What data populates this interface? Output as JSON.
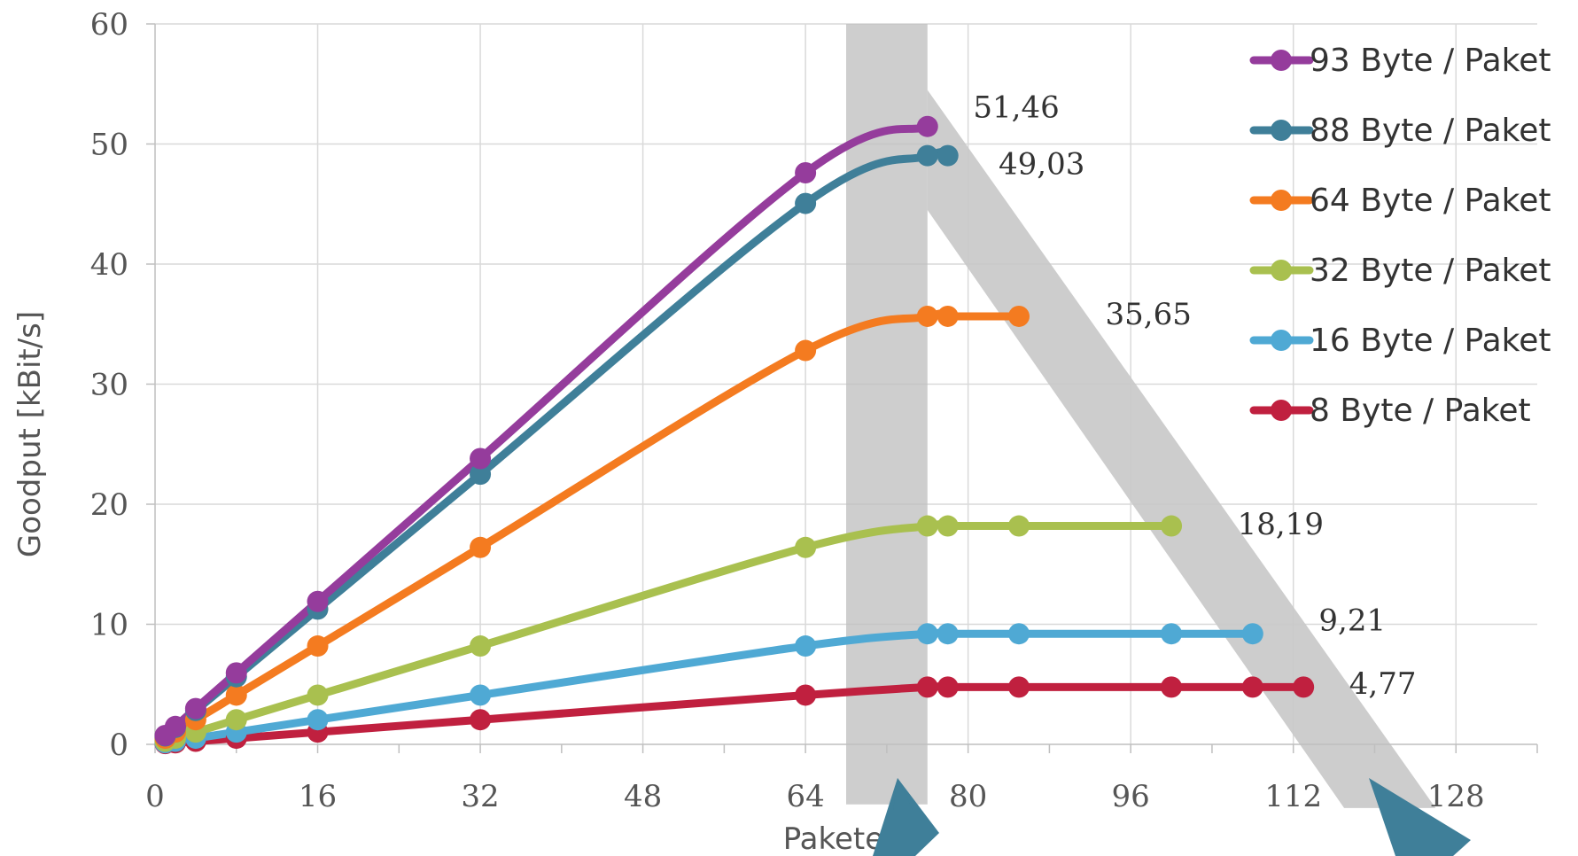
{
  "chart_data": {
    "type": "line",
    "title": "",
    "xlabel": "Pakete/s",
    "ylabel": "Goodput [kBit/s]",
    "xlim": [
      0,
      136
    ],
    "ylim": [
      0,
      60
    ],
    "x_ticks": [
      0,
      16,
      32,
      48,
      64,
      80,
      96,
      112,
      128
    ],
    "y_ticks": [
      0,
      10,
      20,
      30,
      40,
      50,
      60
    ],
    "x_tick_labels": [
      "0",
      "16",
      "32",
      "48",
      "64",
      "80",
      "96",
      "112",
      "128"
    ],
    "y_tick_labels": [
      "0",
      "10",
      "20",
      "30",
      "40",
      "50",
      "60"
    ],
    "grid": true,
    "legend_position": "top-right",
    "series": [
      {
        "name": "93 Byte / Paket",
        "color": "#953C9C",
        "x": [
          1,
          2,
          4,
          8,
          16,
          32,
          64,
          76
        ],
        "y": [
          0.74,
          1.49,
          2.98,
          5.95,
          11.9,
          23.8,
          47.6,
          51.46
        ]
      },
      {
        "name": "88 Byte / Paket",
        "color": "#3F7F99",
        "x": [
          1,
          2,
          4,
          8,
          16,
          32,
          64,
          76,
          78
        ],
        "y": [
          0.7,
          1.41,
          2.82,
          5.63,
          11.26,
          22.5,
          45.05,
          49.03,
          49.03
        ]
      },
      {
        "name": "64 Byte / Paket",
        "color": "#F47B20",
        "x": [
          1,
          2,
          4,
          8,
          16,
          32,
          64,
          76,
          78,
          85
        ],
        "y": [
          0.51,
          1.02,
          2.05,
          4.1,
          8.19,
          16.4,
          32.8,
          35.65,
          35.65,
          35.65
        ]
      },
      {
        "name": "32 Byte / Paket",
        "color": "#A9C04F",
        "x": [
          1,
          2,
          4,
          8,
          16,
          32,
          64,
          76,
          78,
          85,
          100
        ],
        "y": [
          0.26,
          0.51,
          1.02,
          2.05,
          4.1,
          8.19,
          16.4,
          18.19,
          18.19,
          18.19,
          18.19
        ]
      },
      {
        "name": "16 Byte / Paket",
        "color": "#4FA9D4",
        "x": [
          1,
          2,
          4,
          8,
          16,
          32,
          64,
          76,
          78,
          85,
          100,
          108
        ],
        "y": [
          0.13,
          0.26,
          0.51,
          1.02,
          2.05,
          4.1,
          8.19,
          9.21,
          9.21,
          9.21,
          9.21,
          9.21
        ]
      },
      {
        "name": "8 Byte / Paket",
        "color": "#C0203F",
        "x": [
          1,
          2,
          4,
          8,
          16,
          32,
          64,
          76,
          78,
          85,
          100,
          108,
          113
        ],
        "y": [
          0.06,
          0.13,
          0.26,
          0.51,
          1.02,
          2.05,
          4.1,
          4.77,
          4.77,
          4.77,
          4.77,
          4.77,
          4.77
        ]
      }
    ],
    "annotations": [
      {
        "text": "51,46",
        "x": 80.5,
        "y": 52.2
      },
      {
        "text": "49,03",
        "x": 83.0,
        "y": 47.5
      },
      {
        "text": "35,65",
        "x": 93.5,
        "y": 35.0
      },
      {
        "text": "18,19",
        "x": 106.5,
        "y": 17.5
      },
      {
        "text": "9,21",
        "x": 114.5,
        "y": 9.5
      },
      {
        "text": "4,77",
        "x": 117.5,
        "y": 4.2
      }
    ],
    "highlight": {
      "band_x": [
        68,
        76
      ],
      "diagonal_color": "#C8C8C8",
      "arrow_color": "#3F7F99"
    }
  }
}
